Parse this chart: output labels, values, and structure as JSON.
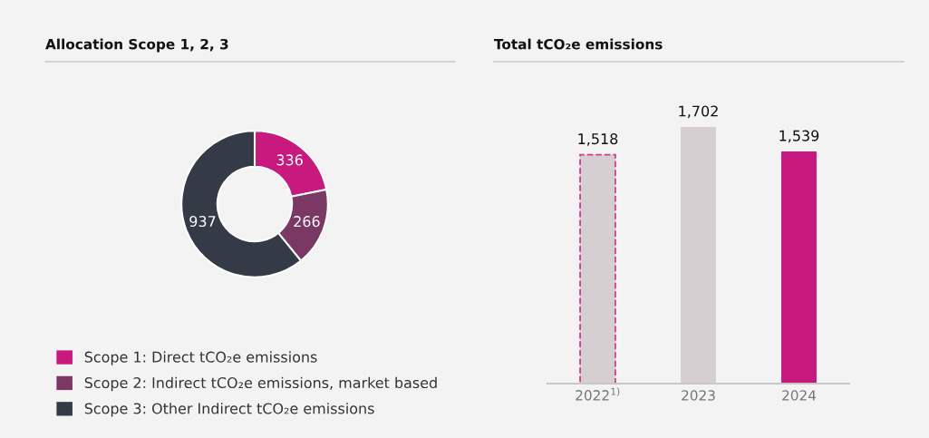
{
  "chart_data": [
    {
      "type": "donut",
      "title": "Allocation Scope 1, 2, 3",
      "categories": [
        "Scope 1: Direct tCO₂e emissions",
        "Scope 2: Indirect tCO₂e emissions, market based",
        "Scope 3: Other Indirect tCO₂e emissions"
      ],
      "values": [
        336,
        266,
        937
      ],
      "colors": [
        "#c8197f",
        "#7b3865",
        "#343a46"
      ],
      "data_labels": true,
      "legend": "bottom left"
    },
    {
      "type": "bar",
      "title": "Total tCO₂e emissions",
      "categories": [
        "2022$^{1)}$",
        "2023",
        "2024"
      ],
      "series": [
        {
          "values": [
            1518,
            null,
            null
          ],
          "value_labels": [
            "1,518",
            null,
            null
          ],
          "color": "#d5cfd2",
          "line_style": "dashed"
        },
        {
          "values": [
            null,
            1702,
            null
          ],
          "value_labels": [
            null,
            "1,702",
            null
          ],
          "color": "#d5cfd2"
        },
        {
          "values": [
            null,
            null,
            1539
          ],
          "value_labels": [
            null,
            null,
            "1,539"
          ],
          "color": "#c8197f"
        }
      ],
      "grid": false
    }
  ]
}
